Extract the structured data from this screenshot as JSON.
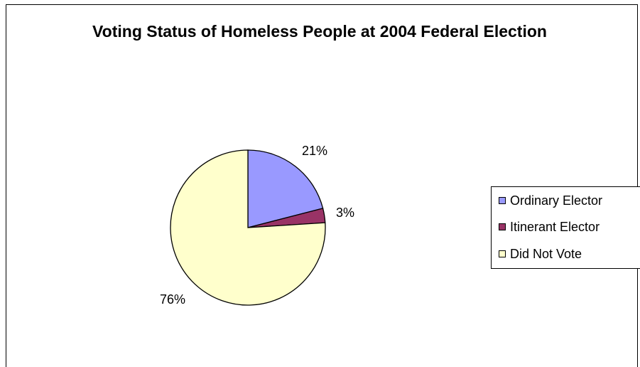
{
  "chart_data": {
    "type": "pie",
    "title": "Voting Status of Homeless People at 2004 Federal Election",
    "categories": [
      "Ordinary Elector",
      "Itinerant Elector",
      "Did Not Vote"
    ],
    "values": [
      21,
      3,
      76
    ],
    "data_labels": [
      "21%",
      "3%",
      "76%"
    ],
    "colors": [
      "#9999ff",
      "#993366",
      "#ffffcc"
    ],
    "legend_position": "right"
  }
}
